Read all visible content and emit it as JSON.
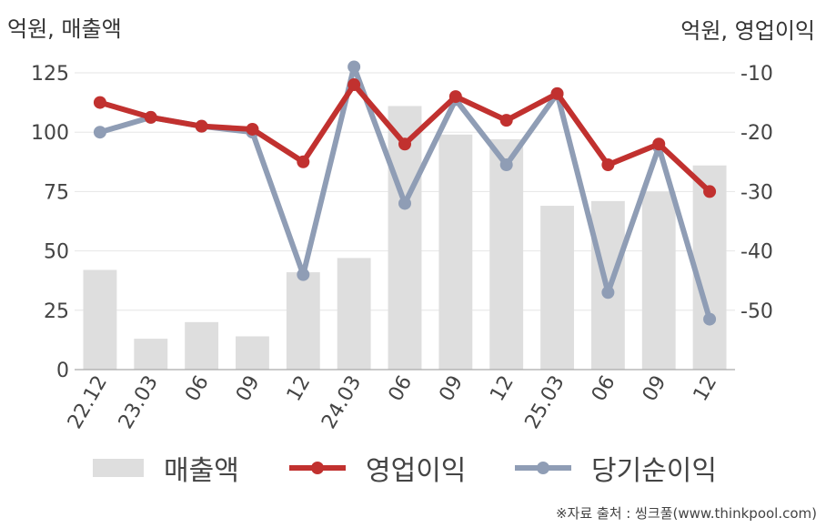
{
  "header": {
    "left_axis_title": "억원, 매출액",
    "right_axis_title": "억원, 영업이익"
  },
  "legend": {
    "revenue_label": "매출액",
    "operating_label": "영업이익",
    "net_label": "당기순이익"
  },
  "source": "※자료 출처 : 씽크풀(www.thinkpool.com)",
  "chart_data": {
    "type": "bar",
    "categories": [
      "22.12",
      "23.03",
      "06",
      "09",
      "12",
      "24.03",
      "06",
      "09",
      "12",
      "25.03",
      "06",
      "09",
      "12"
    ],
    "series": [
      {
        "name": "매출액",
        "type": "bar",
        "axis": "left",
        "color": "#dedede",
        "values": [
          42,
          13,
          20,
          14,
          41,
          47,
          111,
          99,
          97,
          69,
          71,
          75,
          86
        ]
      },
      {
        "name": "영업이익",
        "type": "line",
        "axis": "right",
        "color": "#c1312f",
        "values": [
          -15,
          -17.5,
          -19,
          -19.5,
          -25,
          -12,
          -22,
          -14,
          -18,
          -13.5,
          -25.5,
          -22,
          -30
        ]
      },
      {
        "name": "당기순이익",
        "type": "line",
        "axis": "right",
        "color": "#8f9db5",
        "values": [
          -20,
          -17.5,
          -19,
          -20,
          -44,
          -9,
          -32,
          -14.5,
          -25.5,
          -13.5,
          -47,
          -22.5,
          -51.5
        ]
      }
    ],
    "y_left": {
      "min": 0,
      "max": 125,
      "ticks": [
        0,
        25,
        50,
        75,
        100,
        125
      ]
    },
    "y_right": {
      "min": -60,
      "max": -10,
      "ticks": [
        -50,
        -40,
        -30,
        -20,
        -10
      ]
    },
    "grid": true,
    "legend_position": "bottom"
  }
}
